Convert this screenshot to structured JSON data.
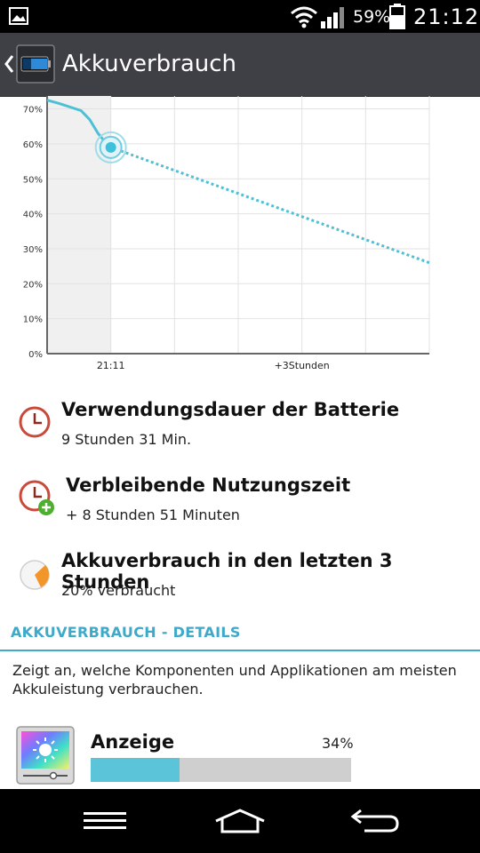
{
  "status_bar": {
    "battery_percent": "59%",
    "time": "21:12",
    "icons": [
      "gallery-icon",
      "wifi-icon",
      "signal-icon",
      "battery-icon"
    ]
  },
  "action_bar": {
    "title": "Akkuverbrauch",
    "icons": [
      "back-chevron-icon",
      "battery-app-icon"
    ]
  },
  "chart_data": {
    "type": "line",
    "y_tick_labels": [
      "70%",
      "60%",
      "50%",
      "40%",
      "30%",
      "20%",
      "10%",
      "0%"
    ],
    "x_tick_labels": [
      "21:11",
      "+3Stunden"
    ],
    "ylim": [
      0,
      72
    ],
    "x_unit": "hours from chart start",
    "history": {
      "x": [
        0,
        0.3,
        0.8,
        1.0,
        1.2,
        1.4,
        1.5
      ],
      "y": [
        72.5,
        71.5,
        69.5,
        67,
        63,
        60,
        59
      ]
    },
    "projection": {
      "x": [
        1.5,
        9.0
      ],
      "y": [
        59,
        26
      ]
    },
    "current_point": {
      "x": 1.5,
      "y": 59
    },
    "grid": true,
    "colors": {
      "line": "#4ec0d6",
      "history_shade": "#f0f0f0",
      "grid": "#e2e2e2"
    }
  },
  "info_items": [
    {
      "icon": "clock-icon",
      "headline": "Verwendungsdauer der Batterie",
      "sub": "9 Stunden 31 Min."
    },
    {
      "icon": "clock-plus-icon",
      "headline": "Verbleibende Nutzungszeit",
      "sub": "+ 8 Stunden 51 Minuten"
    },
    {
      "icon": "pie-chart-icon",
      "headline": "Akkuverbrauch in den letzten 3 Stunden",
      "sub": "20% verbraucht"
    }
  ],
  "details": {
    "header": "AKKUVERBRAUCH - DETAILS",
    "description": "Zeigt an, welche Komponenten und Applikationen am meisten Akkuleistung verbrauchen.",
    "components": [
      {
        "icon": "display-brightness-icon",
        "name": "Anzeige",
        "percent_label": "34%",
        "percent": 0.34
      }
    ]
  },
  "nav_bar": {
    "icons": [
      "menu-icon",
      "home-icon",
      "back-icon"
    ]
  },
  "accent_color": "#3fa9c9"
}
